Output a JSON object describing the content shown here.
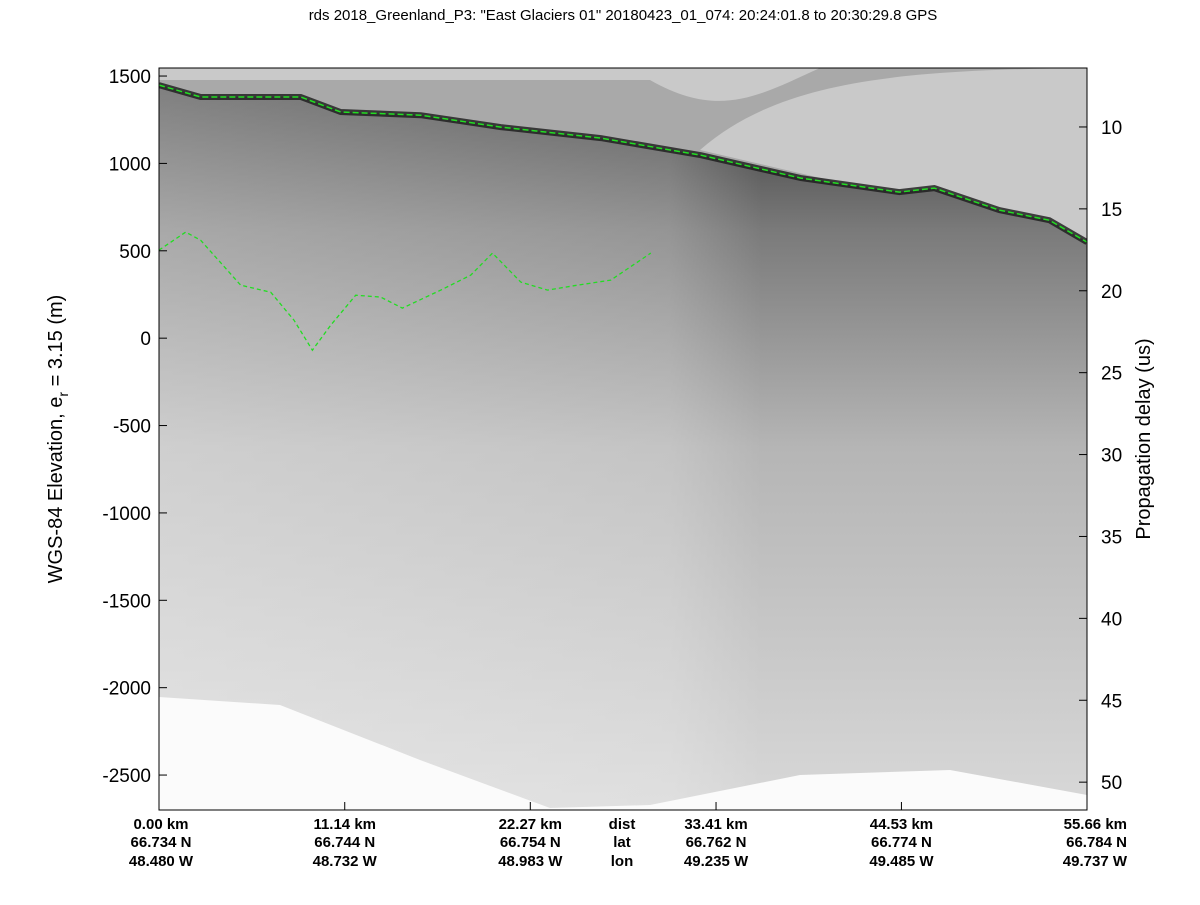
{
  "chart_data": {
    "type": "heatmap",
    "title": "rds 2018_Greenland_P3: \"East Glaciers 01\"  20180423_01_074: 20:24:01.8 to 20:30:29.8 GPS",
    "ylabel_main": "WGS-84 Elevation, e",
    "ylabel_sub": "r",
    "ylabel_tail": " = 3.15 (m)",
    "y2label": "Propagation delay (us)",
    "ylim": [
      -2700,
      1546
    ],
    "y2lim": [
      6.4,
      51.7
    ],
    "xlim_km": [
      0,
      55.66
    ],
    "yticks": [
      "1500",
      "1000",
      "500",
      "0",
      "-500",
      "-1000",
      "-1500",
      "-2000",
      "-2500"
    ],
    "ytick_values": [
      1500,
      1000,
      500,
      0,
      -500,
      -1000,
      -1500,
      -2000,
      -2500
    ],
    "y2ticks": [
      "10",
      "15",
      "20",
      "25",
      "30",
      "35",
      "40",
      "45",
      "50"
    ],
    "y2tick_values": [
      10,
      15,
      20,
      25,
      30,
      35,
      40,
      45,
      50
    ],
    "bottom_row_labels": [
      "dist",
      "lat",
      "lon"
    ],
    "dist_ticks": [
      "0.00 km",
      "11.14 km",
      "22.27 km",
      "33.41 km",
      "44.53 km",
      "55.66 km"
    ],
    "dist_values": [
      0,
      11.14,
      22.27,
      33.41,
      44.53,
      55.66
    ],
    "lat_ticks": [
      "66.734 N",
      "66.744 N",
      "66.754 N",
      "66.762 N",
      "66.774 N",
      "66.784 N"
    ],
    "lon_ticks": [
      "48.480 W",
      "48.732 W",
      "48.983 W",
      "49.235 W",
      "49.485 W",
      "49.737 W"
    ],
    "colormap": "gray",
    "pick_color": "#22dd22",
    "series": [
      {
        "name": "surface",
        "x": [
          0,
          2.5,
          8.5,
          10.9,
          15.7,
          20.5,
          26.5,
          32.5,
          38.5,
          44.4,
          46.5,
          50.4,
          53.4,
          55.66
        ],
        "y": [
          1448,
          1380,
          1380,
          1294,
          1276,
          1208,
          1145,
          1047,
          916,
          836,
          859,
          733,
          675,
          550
        ]
      },
      {
        "name": "bottom",
        "x": [
          0,
          1.6,
          2.5,
          4.9,
          6.7,
          8.1,
          9.2,
          10.3,
          11.8,
          13.3,
          14.6,
          16.9,
          18.7,
          20.0,
          21.7,
          23.3,
          24.9,
          27.1,
          29.5
        ],
        "y": [
          504,
          607,
          560,
          303,
          263,
          103,
          -69,
          74,
          246,
          235,
          172,
          275,
          361,
          487,
          321,
          275,
          300,
          332,
          487
        ]
      }
    ]
  }
}
